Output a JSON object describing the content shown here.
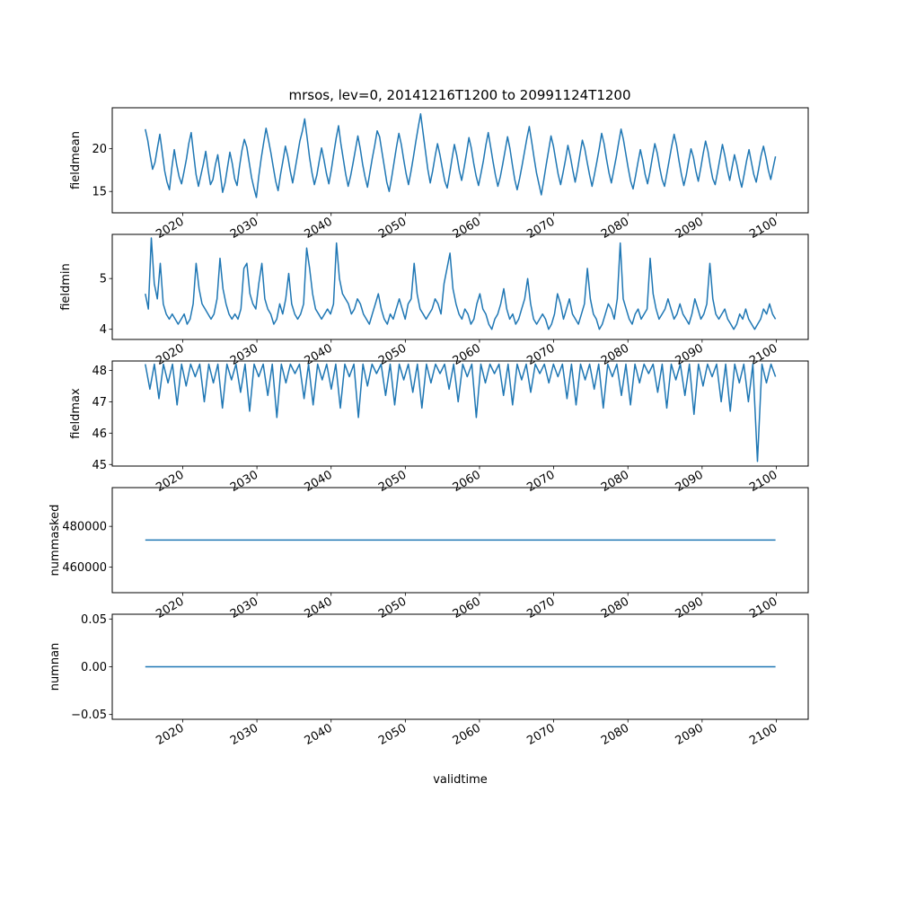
{
  "title": "mrsos, lev=0, 20141216T1200 to 20991124T1200",
  "chart_data": [
    {
      "type": "line",
      "ylabel": "fieldmean",
      "xlabel": "",
      "xlim": [
        2010.5,
        2104.3
      ],
      "ylim": [
        12.5,
        24.8
      ],
      "yticks": [
        15,
        20
      ],
      "ytick_labels": [
        "15",
        "20"
      ],
      "xticks": [
        2020,
        2030,
        2040,
        2050,
        2060,
        2070,
        2080,
        2090,
        2100
      ],
      "xtick_labels": [
        "2020",
        "2030",
        "2040",
        "2050",
        "2060",
        "2070",
        "2080",
        "2090",
        "2100"
      ],
      "series": [
        {
          "x_start": 2014.96,
          "x_end": 2099.9,
          "values": [
            22.3,
            21.0,
            19.2,
            17.6,
            18.4,
            20.1,
            21.7,
            19.6,
            17.4,
            16.1,
            15.2,
            17.8,
            19.9,
            18.1,
            16.7,
            15.9,
            17.3,
            18.8,
            20.6,
            21.9,
            19.4,
            17.0,
            15.6,
            16.9,
            18.2,
            19.7,
            17.5,
            15.8,
            16.4,
            18.1,
            19.3,
            17.2,
            14.9,
            16.0,
            17.8,
            19.6,
            18.3,
            16.5,
            15.7,
            17.9,
            19.8,
            21.1,
            20.2,
            18.4,
            16.6,
            15.4,
            14.3,
            16.8,
            18.9,
            20.7,
            22.4,
            21.0,
            19.5,
            17.8,
            16.2,
            15.1,
            17.0,
            18.6,
            20.3,
            19.1,
            17.4,
            16.0,
            17.6,
            19.2,
            20.9,
            22.0,
            23.5,
            21.3,
            19.0,
            17.2,
            15.8,
            16.9,
            18.5,
            20.1,
            18.7,
            17.1,
            15.9,
            17.5,
            19.4,
            21.2,
            22.7,
            20.6,
            18.8,
            17.0,
            15.6,
            16.8,
            18.3,
            19.9,
            21.5,
            20.0,
            18.2,
            16.7,
            15.5,
            17.2,
            18.9,
            20.4,
            22.1,
            21.4,
            19.6,
            17.9,
            16.1,
            15.0,
            16.6,
            18.4,
            20.2,
            21.8,
            20.5,
            18.7,
            17.1,
            15.8,
            17.3,
            19.0,
            20.8,
            22.5,
            24.1,
            21.9,
            19.7,
            17.6,
            16.0,
            17.4,
            19.1,
            20.6,
            19.3,
            17.7,
            16.2,
            15.4,
            17.0,
            18.8,
            20.5,
            19.2,
            17.5,
            16.3,
            17.8,
            19.5,
            21.3,
            20.1,
            18.3,
            16.8,
            15.7,
            17.1,
            18.6,
            20.4,
            21.9,
            20.2,
            18.5,
            16.9,
            15.6,
            16.7,
            18.2,
            19.8,
            21.4,
            20.0,
            18.1,
            16.4,
            15.2,
            16.5,
            18.0,
            19.6,
            21.2,
            22.6,
            20.8,
            18.9,
            17.2,
            15.9,
            14.6,
            16.3,
            18.1,
            19.8,
            21.5,
            20.3,
            18.6,
            17.0,
            15.8,
            17.2,
            18.7,
            20.4,
            19.1,
            17.5,
            16.1,
            17.6,
            19.3,
            21.0,
            20.0,
            18.4,
            16.9,
            15.6,
            17.0,
            18.5,
            20.1,
            21.8,
            20.6,
            18.8,
            17.2,
            16.0,
            17.5,
            19.0,
            20.7,
            22.3,
            21.1,
            19.4,
            17.7,
            16.2,
            15.3,
            16.8,
            18.4,
            19.9,
            18.6,
            17.0,
            15.9,
            17.3,
            19.0,
            20.6,
            19.5,
            17.8,
            16.4,
            15.6,
            17.1,
            18.7,
            20.3,
            21.7,
            20.4,
            18.6,
            17.0,
            15.7,
            16.9,
            18.5,
            20.0,
            19.0,
            17.4,
            16.2,
            17.7,
            19.4,
            20.9,
            19.7,
            18.0,
            16.5,
            15.8,
            17.3,
            18.9,
            20.5,
            19.2,
            17.6,
            16.3,
            17.8,
            19.3,
            18.1,
            16.6,
            15.5,
            17.0,
            18.6,
            19.9,
            18.4,
            17.0,
            16.1,
            17.6,
            19.2,
            20.3,
            19.0,
            17.5,
            16.4,
            17.8,
            19.1
          ]
        }
      ]
    },
    {
      "type": "line",
      "ylabel": "fieldmin",
      "xlabel": "",
      "xlim": [
        2010.5,
        2104.3
      ],
      "ylim": [
        3.8,
        5.87
      ],
      "yticks": [
        4,
        5
      ],
      "ytick_labels": [
        "4",
        "5"
      ],
      "xticks": [
        2020,
        2030,
        2040,
        2050,
        2060,
        2070,
        2080,
        2090,
        2100
      ],
      "xtick_labels": [
        "2020",
        "2030",
        "2040",
        "2050",
        "2060",
        "2070",
        "2080",
        "2090",
        "2100"
      ],
      "series": [
        {
          "x_start": 2014.96,
          "x_end": 2099.9,
          "values": [
            4.7,
            4.4,
            5.8,
            4.9,
            4.6,
            5.3,
            4.5,
            4.3,
            4.2,
            4.3,
            4.2,
            4.1,
            4.2,
            4.3,
            4.1,
            4.2,
            4.5,
            5.3,
            4.8,
            4.5,
            4.4,
            4.3,
            4.2,
            4.3,
            4.6,
            5.4,
            4.8,
            4.5,
            4.3,
            4.2,
            4.3,
            4.2,
            4.4,
            5.2,
            5.3,
            4.7,
            4.5,
            4.4,
            4.9,
            5.3,
            4.6,
            4.4,
            4.3,
            4.1,
            4.2,
            4.5,
            4.3,
            4.6,
            5.1,
            4.5,
            4.3,
            4.2,
            4.3,
            4.5,
            5.6,
            5.2,
            4.7,
            4.4,
            4.3,
            4.2,
            4.3,
            4.4,
            4.3,
            4.5,
            5.7,
            5.0,
            4.7,
            4.6,
            4.5,
            4.3,
            4.4,
            4.6,
            4.5,
            4.3,
            4.2,
            4.1,
            4.3,
            4.5,
            4.7,
            4.4,
            4.2,
            4.1,
            4.3,
            4.2,
            4.4,
            4.6,
            4.4,
            4.2,
            4.5,
            4.6,
            5.3,
            4.7,
            4.4,
            4.3,
            4.2,
            4.3,
            4.4,
            4.6,
            4.5,
            4.3,
            4.9,
            5.2,
            5.5,
            4.8,
            4.5,
            4.3,
            4.2,
            4.4,
            4.3,
            4.1,
            4.2,
            4.5,
            4.7,
            4.4,
            4.3,
            4.1,
            4.0,
            4.2,
            4.3,
            4.5,
            4.8,
            4.4,
            4.2,
            4.3,
            4.1,
            4.2,
            4.4,
            4.6,
            5.0,
            4.5,
            4.2,
            4.1,
            4.2,
            4.3,
            4.2,
            4.0,
            4.1,
            4.3,
            4.7,
            4.5,
            4.2,
            4.4,
            4.6,
            4.3,
            4.2,
            4.1,
            4.3,
            4.5,
            5.2,
            4.6,
            4.3,
            4.2,
            4.0,
            4.1,
            4.3,
            4.5,
            4.4,
            4.2,
            4.6,
            5.7,
            4.6,
            4.4,
            4.2,
            4.1,
            4.3,
            4.4,
            4.2,
            4.3,
            4.4,
            5.4,
            4.7,
            4.4,
            4.2,
            4.3,
            4.4,
            4.6,
            4.4,
            4.2,
            4.3,
            4.5,
            4.3,
            4.2,
            4.1,
            4.3,
            4.6,
            4.4,
            4.2,
            4.3,
            4.5,
            5.3,
            4.6,
            4.3,
            4.2,
            4.3,
            4.4,
            4.2,
            4.1,
            4.0,
            4.1,
            4.3,
            4.2,
            4.4,
            4.2,
            4.1,
            4.0,
            4.1,
            4.2,
            4.4,
            4.3,
            4.5,
            4.3,
            4.2
          ]
        }
      ]
    },
    {
      "type": "line",
      "ylabel": "fieldmax",
      "xlabel": "",
      "xlim": [
        2010.5,
        2104.3
      ],
      "ylim": [
        44.95,
        48.3
      ],
      "yticks": [
        45,
        46,
        47,
        48
      ],
      "ytick_labels": [
        "45",
        "46",
        "47",
        "48"
      ],
      "xticks": [
        2020,
        2030,
        2040,
        2050,
        2060,
        2070,
        2080,
        2090,
        2100
      ],
      "xtick_labels": [
        "2020",
        "2030",
        "2040",
        "2050",
        "2060",
        "2070",
        "2080",
        "2090",
        "2100"
      ],
      "series": [
        {
          "x_start": 2014.96,
          "x_end": 2099.9,
          "values": [
            48.2,
            47.4,
            48.2,
            47.1,
            48.2,
            47.6,
            48.2,
            46.9,
            48.2,
            47.5,
            48.2,
            47.8,
            48.2,
            47.0,
            48.2,
            47.6,
            48.2,
            46.8,
            48.2,
            47.7,
            48.2,
            47.3,
            48.2,
            46.7,
            48.2,
            47.8,
            48.2,
            47.2,
            48.2,
            46.5,
            48.2,
            47.6,
            48.2,
            47.9,
            48.2,
            47.1,
            48.2,
            46.9,
            48.2,
            47.7,
            48.2,
            47.4,
            48.2,
            46.8,
            48.2,
            47.8,
            48.2,
            46.5,
            48.2,
            47.5,
            48.2,
            47.9,
            48.2,
            47.2,
            48.2,
            46.9,
            48.2,
            47.7,
            48.2,
            47.3,
            48.2,
            46.8,
            48.2,
            47.6,
            48.2,
            47.9,
            48.2,
            47.4,
            48.2,
            47.0,
            48.2,
            47.8,
            48.2,
            46.5,
            48.2,
            47.6,
            48.2,
            47.9,
            48.2,
            47.2,
            48.2,
            46.9,
            48.2,
            47.7,
            48.2,
            47.3,
            48.2,
            47.9,
            48.2,
            47.6,
            48.2,
            47.8,
            48.2,
            47.1,
            48.2,
            46.9,
            48.2,
            47.7,
            48.2,
            47.4,
            48.2,
            46.8,
            48.2,
            47.8,
            48.2,
            47.2,
            48.2,
            46.9,
            48.2,
            47.6,
            48.2,
            47.9,
            48.2,
            47.3,
            48.2,
            46.8,
            48.2,
            47.7,
            48.2,
            47.2,
            48.2,
            46.6,
            48.2,
            47.5,
            48.2,
            47.8,
            48.2,
            47.0,
            48.2,
            46.7,
            48.2,
            47.6,
            48.2,
            47.0,
            48.2,
            45.1,
            48.2,
            47.6,
            48.2,
            47.8
          ]
        }
      ]
    },
    {
      "type": "line",
      "ylabel": "nummasked",
      "xlabel": "",
      "xlim": [
        2010.5,
        2104.3
      ],
      "ylim": [
        447500,
        499000
      ],
      "yticks": [
        460000,
        480000
      ],
      "ytick_labels": [
        "460000",
        "480000"
      ],
      "xticks": [
        2020,
        2030,
        2040,
        2050,
        2060,
        2070,
        2080,
        2090,
        2100
      ],
      "xtick_labels": [
        "2020",
        "2030",
        "2040",
        "2050",
        "2060",
        "2070",
        "2080",
        "2090",
        "2100"
      ],
      "series": [
        {
          "x_start": 2014.96,
          "x_end": 2099.9,
          "values": [
            473300,
            473300
          ]
        }
      ]
    },
    {
      "type": "line",
      "ylabel": "numnan",
      "xlabel": "validtime",
      "xlim": [
        2010.5,
        2104.3
      ],
      "ylim": [
        -0.055,
        0.055
      ],
      "yticks": [
        -0.05,
        0.0,
        0.05
      ],
      "ytick_labels": [
        "−0.05",
        "0.00",
        "0.05"
      ],
      "xticks": [
        2020,
        2030,
        2040,
        2050,
        2060,
        2070,
        2080,
        2090,
        2100
      ],
      "xtick_labels": [
        "2020",
        "2030",
        "2040",
        "2050",
        "2060",
        "2070",
        "2080",
        "2090",
        "2100"
      ],
      "series": [
        {
          "x_start": 2014.96,
          "x_end": 2099.9,
          "values": [
            0,
            0
          ]
        }
      ]
    }
  ]
}
